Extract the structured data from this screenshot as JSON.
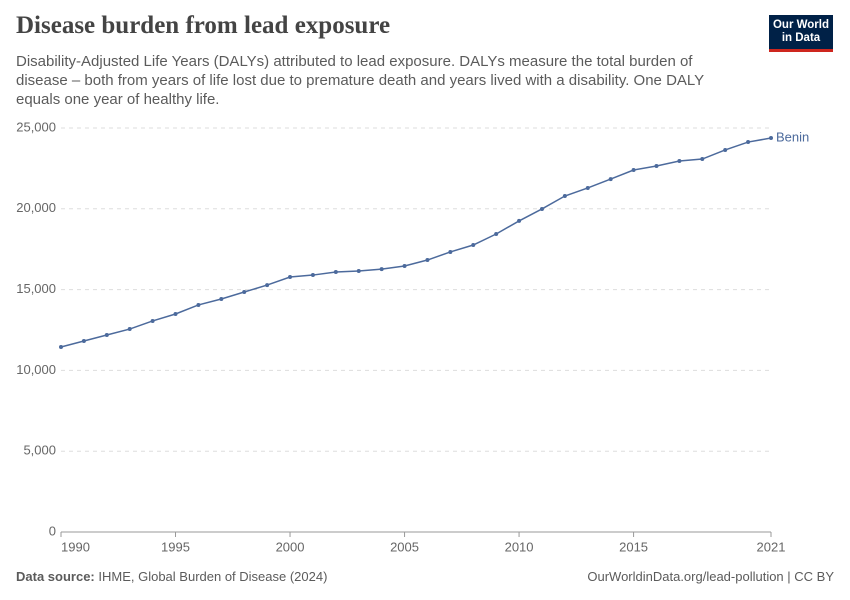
{
  "chart_data": {
    "type": "line",
    "title": "Disease burden from lead exposure",
    "subtitle": "Disability-Adjusted Life Years (DALYs) attributed to lead exposure. DALYs measure the total burden of disease – both from years of life lost due to premature death and years lived with a disability. One DALY equals one year of healthy life.",
    "logo": {
      "line1": "Our World",
      "line2": "in Data"
    },
    "source_label": "Data source:",
    "source": "IHME, Global Burden of Disease (2024)",
    "credit": "OurWorldinData.org/lead-pollution | CC BY",
    "x": [
      1990,
      1991,
      1992,
      1993,
      1994,
      1995,
      1996,
      1997,
      1998,
      1999,
      2000,
      2001,
      2002,
      2003,
      2004,
      2005,
      2006,
      2007,
      2008,
      2009,
      2010,
      2011,
      2012,
      2013,
      2014,
      2015,
      2016,
      2017,
      2018,
      2019,
      2020,
      2021
    ],
    "series": [
      {
        "name": "Benin",
        "color": "#4c6a9c",
        "values": [
          11450,
          11820,
          12190,
          12560,
          13060,
          13490,
          14050,
          14420,
          14850,
          15280,
          15780,
          15900,
          16090,
          16150,
          16270,
          16460,
          16830,
          17330,
          17760,
          18440,
          19250,
          19990,
          20790,
          21290,
          21840,
          22400,
          22650,
          22960,
          23080,
          23640,
          24130,
          24380
        ]
      }
    ],
    "xlim": [
      1990,
      2021
    ],
    "xticks": [
      1990,
      1995,
      2000,
      2005,
      2010,
      2015,
      2021
    ],
    "ylim": [
      0,
      25000
    ],
    "yticks": [
      0,
      {
        "value": 5000,
        "label": "5,000"
      },
      {
        "value": 10000,
        "label": "10,000"
      },
      {
        "value": 15000,
        "label": "15,000"
      },
      {
        "value": 20000,
        "label": "20,000"
      },
      {
        "value": 25000,
        "label": "25,000"
      }
    ],
    "grid": true
  }
}
